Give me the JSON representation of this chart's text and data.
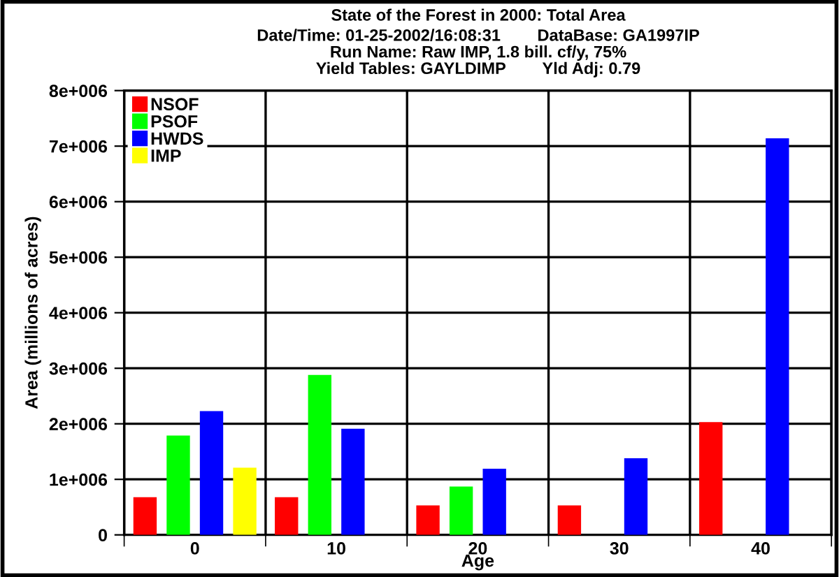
{
  "chart_data": {
    "type": "bar",
    "title": "State of the Forest in 2000: Total Area",
    "subtitle": "Date/Time: 01-25-2002/16:08:31        DataBase: GA1997IP\nRun Name: Raw IMP, 1.8 bill. cf/y, 75%\nYield Tables: GAYLDIMP        Yld Adj: 0.79",
    "xlabel": "Age",
    "ylabel": "Area (millions of acres)",
    "categories": [
      "0",
      "10",
      "20",
      "30",
      "40"
    ],
    "series": [
      {
        "name": "NSOF",
        "color": "#ff0000",
        "values": [
          680000,
          680000,
          530000,
          530000,
          2030000
        ]
      },
      {
        "name": "PSOF",
        "color": "#00ff00",
        "values": [
          1790000,
          2880000,
          870000,
          null,
          null
        ]
      },
      {
        "name": "HWDS",
        "color": "#0000ff",
        "values": [
          2230000,
          1910000,
          1190000,
          1380000,
          7140000
        ]
      },
      {
        "name": "IMP",
        "color": "#ffff00",
        "values": [
          1210000,
          null,
          null,
          null,
          null
        ]
      }
    ],
    "ylim": [
      0,
      8000000
    ],
    "yticks": [
      0,
      {
        "value": 1000000,
        "label": "1e+006"
      },
      {
        "value": 2000000,
        "label": "2e+006"
      },
      {
        "value": 3000000,
        "label": "3e+006"
      },
      {
        "value": 4000000,
        "label": "4e+006"
      },
      {
        "value": 5000000,
        "label": "5e+006"
      },
      {
        "value": 6000000,
        "label": "6e+006"
      },
      {
        "value": 7000000,
        "label": "7e+006"
      },
      {
        "value": 8000000,
        "label": "8e+006"
      }
    ],
    "grid": true,
    "legend": "top left"
  }
}
